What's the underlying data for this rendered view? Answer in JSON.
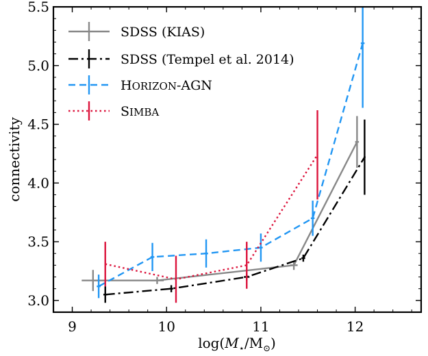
{
  "chart_data": {
    "type": "line",
    "xlabel": "log(M⋆/M⊙)",
    "ylabel": "connectivity",
    "xlim": [
      8.8,
      12.7
    ],
    "ylim": [
      2.9,
      5.5
    ],
    "xticks": [
      9,
      10,
      11,
      12
    ],
    "xtick_labels": [
      "9",
      "10",
      "11",
      "12"
    ],
    "yticks": [
      3.0,
      3.5,
      4.0,
      4.5,
      5.0,
      5.5
    ],
    "ytick_labels": [
      "3.0",
      "3.5",
      "4.0",
      "4.5",
      "5.0",
      "5.5"
    ],
    "grid": false,
    "legend_position": "top-left",
    "series": [
      {
        "name": "SDSS (KIAS)",
        "color": "#888888",
        "linestyle": "solid",
        "x": [
          9.22,
          9.9,
          11.35,
          12.02
        ],
        "y": [
          3.17,
          3.17,
          3.3,
          4.35
        ],
        "yerr": [
          0.09,
          0.03,
          0.04,
          0.22
        ],
        "xerr": [
          0.12,
          0.07,
          0.04,
          0.02
        ]
      },
      {
        "name": "SDSS (Tempel et al. 2014)",
        "color": "#000000",
        "linestyle": "dashdot",
        "x": [
          9.35,
          10.05,
          10.85,
          11.45,
          12.1
        ],
        "y": [
          3.05,
          3.1,
          3.2,
          3.36,
          4.22
        ],
        "yerr": [
          0.07,
          0.03,
          0.03,
          0.03,
          0.32
        ],
        "xerr": [
          0.02,
          0.02,
          0.03,
          0.02,
          0.01
        ]
      },
      {
        "name": "Horizon-AGN",
        "color": "#2196f3",
        "linestyle": "dashed",
        "x": [
          9.28,
          9.85,
          10.42,
          11.0,
          11.55,
          12.08
        ],
        "y": [
          3.12,
          3.37,
          3.4,
          3.45,
          3.7,
          5.19
        ],
        "yerr": [
          0.1,
          0.12,
          0.12,
          0.12,
          0.15,
          0.55
        ],
        "xerr": [
          0.02,
          0.02,
          0.02,
          0.02,
          0.02,
          0.02
        ]
      },
      {
        "name": "Simba",
        "color": "#dc143c",
        "linestyle": "dotted",
        "x": [
          9.35,
          10.1,
          10.85,
          11.6
        ],
        "y": [
          3.31,
          3.18,
          3.3,
          4.24
        ],
        "yerr": [
          0.19,
          0.2,
          0.2,
          0.38
        ],
        "xerr": [
          0,
          0,
          0,
          0
        ]
      }
    ]
  }
}
